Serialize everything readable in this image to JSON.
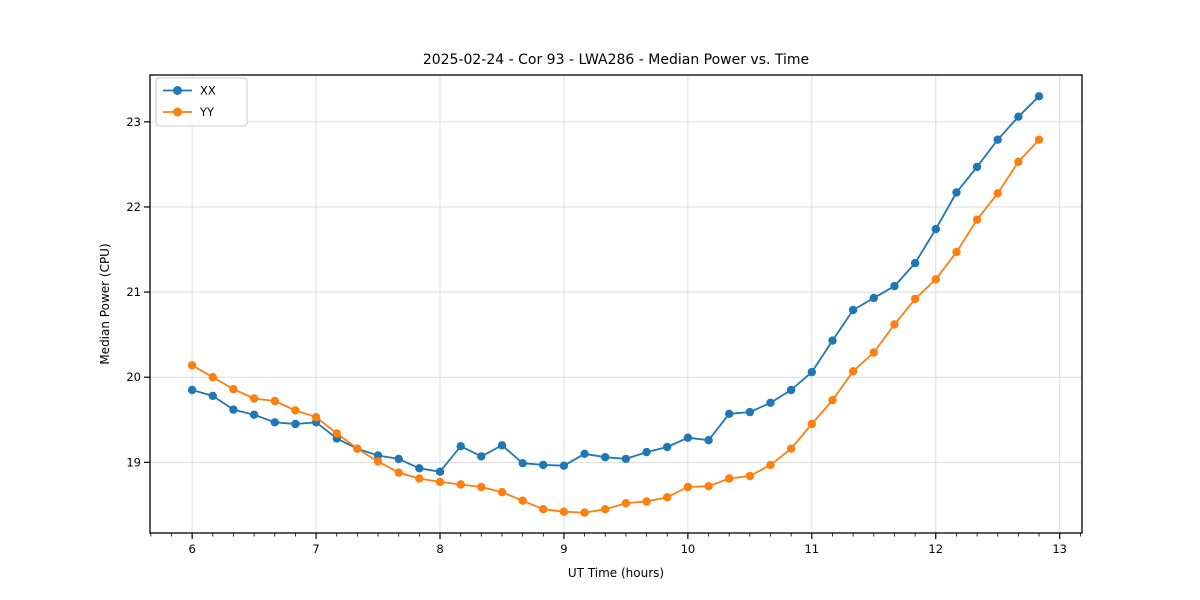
{
  "chart_data": {
    "type": "line",
    "title": "2025-02-24 - Cor 93 - LWA286 - Median Power vs. Time",
    "xlabel": "UT Time (hours)",
    "ylabel": "Median Power (CPU)",
    "xlim": [
      5.66,
      13.18
    ],
    "ylim": [
      18.17,
      23.55
    ],
    "x_ticks": [
      6,
      7,
      8,
      9,
      10,
      11,
      12,
      13
    ],
    "x_tick_labels": [
      "6",
      "7",
      "8",
      "9",
      "10",
      "11",
      "12",
      "13"
    ],
    "x_minor_tick_step_hours": 0.1667,
    "y_ticks": [
      19,
      20,
      21,
      22,
      23
    ],
    "y_tick_labels": [
      "19",
      "20",
      "21",
      "22",
      "23"
    ],
    "grid": true,
    "grid_color": "#dcdcdc",
    "legend_position": "upper-left",
    "x": [
      6.0,
      6.167,
      6.333,
      6.5,
      6.667,
      6.833,
      7.0,
      7.167,
      7.333,
      7.5,
      7.667,
      7.833,
      8.0,
      8.167,
      8.333,
      8.5,
      8.667,
      8.833,
      9.0,
      9.167,
      9.333,
      9.5,
      9.667,
      9.833,
      10.0,
      10.167,
      10.333,
      10.5,
      10.667,
      10.833,
      11.0,
      11.167,
      11.333,
      11.5,
      11.667,
      11.833,
      12.0,
      12.167,
      12.333,
      12.5,
      12.667,
      12.833
    ],
    "series": [
      {
        "name": "XX",
        "color": "#1f77b4",
        "values": [
          19.85,
          19.78,
          19.62,
          19.56,
          19.47,
          19.45,
          19.47,
          19.28,
          19.16,
          19.08,
          19.04,
          18.93,
          18.89,
          19.19,
          19.07,
          19.2,
          18.99,
          18.97,
          18.96,
          19.1,
          19.06,
          19.04,
          19.12,
          19.18,
          19.29,
          19.26,
          19.57,
          19.59,
          19.7,
          19.85,
          20.06,
          20.43,
          20.79,
          20.93,
          21.07,
          21.34,
          21.74,
          22.17,
          22.47,
          22.79,
          23.06,
          23.3
        ]
      },
      {
        "name": "YY",
        "color": "#ff7f0e",
        "values": [
          20.14,
          20.0,
          19.86,
          19.75,
          19.72,
          19.61,
          19.53,
          19.34,
          19.16,
          19.01,
          18.88,
          18.81,
          18.77,
          18.74,
          18.71,
          18.65,
          18.55,
          18.45,
          18.42,
          18.41,
          18.45,
          18.52,
          18.54,
          18.59,
          18.71,
          18.72,
          18.81,
          18.84,
          18.97,
          19.16,
          19.45,
          19.73,
          20.07,
          20.29,
          20.62,
          20.92,
          21.15,
          21.47,
          21.85,
          22.16,
          22.53,
          22.79
        ]
      }
    ]
  }
}
